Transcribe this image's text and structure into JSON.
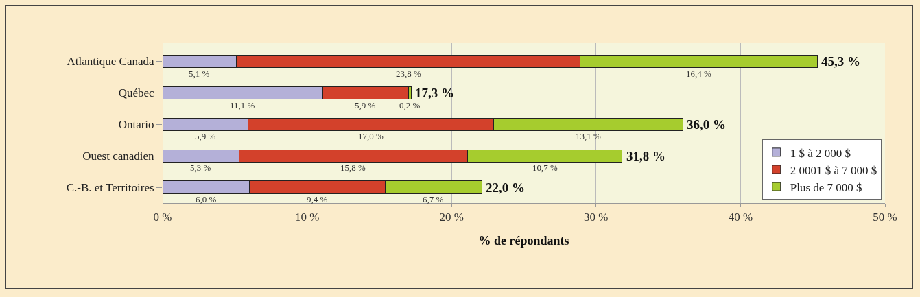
{
  "chart_data": {
    "type": "bar",
    "orientation": "horizontal",
    "stacked": true,
    "xlabel": "% de répondants",
    "categories": [
      "Atlantique Canada",
      "Québec",
      "Ontario",
      "Ouest canadien",
      "C.-B. et Territoires"
    ],
    "series": [
      {
        "name": "1 $ à 2 000 $",
        "color": "#b4b0d8",
        "values": [
          5.1,
          11.1,
          5.9,
          5.3,
          6.0
        ],
        "value_labels": [
          "5,1 %",
          "11,1 %",
          "5,9 %",
          "5,3 %",
          "6,0 %"
        ]
      },
      {
        "name": "2 0001 $ à 7 000 $",
        "color": "#d3412b",
        "values": [
          23.8,
          5.9,
          17.0,
          15.8,
          9.4
        ],
        "value_labels": [
          "23,8 %",
          "5,9 %",
          "17,0 %",
          "15,8 %",
          "9,4 %"
        ]
      },
      {
        "name": "Plus de 7 000 $",
        "color": "#a6cc2e",
        "values": [
          16.4,
          0.2,
          13.1,
          10.7,
          6.7
        ],
        "value_labels": [
          "16,4 %",
          "0,2 %",
          "13,1 %",
          "10,7 %",
          "6,7 %"
        ]
      }
    ],
    "totals": [
      "45,3 %",
      "17,3 %",
      "36,0 %",
      "31,8 %",
      "22,0 %"
    ],
    "xlim": [
      0,
      50
    ],
    "xticks": [
      {
        "value": 0,
        "label": "0 %"
      },
      {
        "value": 10,
        "label": "10 %"
      },
      {
        "value": 20,
        "label": "20 %"
      },
      {
        "value": 30,
        "label": "30 %"
      },
      {
        "value": 40,
        "label": "40 %"
      },
      {
        "value": 50,
        "label": "50 %"
      }
    ],
    "grid": "x",
    "legend": "bottom right"
  }
}
